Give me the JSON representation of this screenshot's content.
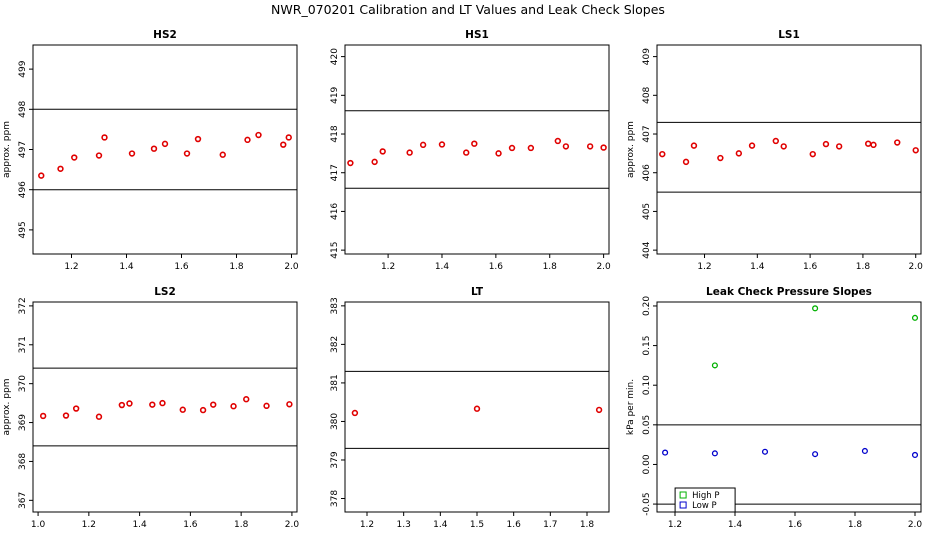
{
  "page_title": "NWR_070201  Calibration and LT Values and Leak Check Slopes",
  "colors": {
    "point": "#e00000",
    "high_p": "#00b000",
    "low_p": "#0000cc",
    "frame": "#000000"
  },
  "chart_data": [
    {
      "id": "hs2",
      "type": "scatter",
      "title": "HS2",
      "ylabel": "approx. ppm",
      "xlim": [
        1.06,
        2.02
      ],
      "ylim": [
        494.4,
        499.6
      ],
      "xticks": [
        1.2,
        1.4,
        1.6,
        1.8,
        2.0
      ],
      "xtick_labels": [
        "1.2",
        "1.4",
        "1.6",
        "1.8",
        "2.0"
      ],
      "yticks": [
        495,
        496,
        497,
        498,
        499
      ],
      "ytick_labels": [
        "495",
        "496",
        "497",
        "498",
        "499"
      ],
      "hlines": [
        498.0,
        496.0
      ],
      "points": [
        [
          1.09,
          496.35
        ],
        [
          1.16,
          496.52
        ],
        [
          1.21,
          496.8
        ],
        [
          1.3,
          496.85
        ],
        [
          1.32,
          497.3
        ],
        [
          1.42,
          496.9
        ],
        [
          1.5,
          497.02
        ],
        [
          1.54,
          497.14
        ],
        [
          1.62,
          496.9
        ],
        [
          1.66,
          497.26
        ],
        [
          1.75,
          496.87
        ],
        [
          1.84,
          497.24
        ],
        [
          1.88,
          497.36
        ],
        [
          1.97,
          497.12
        ],
        [
          1.99,
          497.3
        ]
      ]
    },
    {
      "id": "hs1",
      "type": "scatter",
      "title": "HS1",
      "ylabel": "",
      "xlim": [
        1.04,
        2.02
      ],
      "ylim": [
        414.9,
        420.3
      ],
      "xticks": [
        1.2,
        1.4,
        1.6,
        1.8,
        2.0
      ],
      "xtick_labels": [
        "1.2",
        "1.4",
        "1.6",
        "1.8",
        "2.0"
      ],
      "yticks": [
        415,
        416,
        417,
        418,
        419,
        420
      ],
      "ytick_labels": [
        "415",
        "416",
        "417",
        "418",
        "419",
        "420"
      ],
      "hlines": [
        418.6,
        416.6
      ],
      "points": [
        [
          1.06,
          417.25
        ],
        [
          1.15,
          417.28
        ],
        [
          1.18,
          417.55
        ],
        [
          1.28,
          417.52
        ],
        [
          1.33,
          417.72
        ],
        [
          1.4,
          417.73
        ],
        [
          1.49,
          417.52
        ],
        [
          1.52,
          417.75
        ],
        [
          1.61,
          417.5
        ],
        [
          1.66,
          417.64
        ],
        [
          1.73,
          417.64
        ],
        [
          1.83,
          417.82
        ],
        [
          1.86,
          417.68
        ],
        [
          1.95,
          417.68
        ],
        [
          2.0,
          417.65
        ]
      ]
    },
    {
      "id": "ls1",
      "type": "scatter",
      "title": "LS1",
      "ylabel": "approx. ppm",
      "xlim": [
        1.02,
        2.02
      ],
      "ylim": [
        403.9,
        409.3
      ],
      "xticks": [
        1.2,
        1.4,
        1.6,
        1.8,
        2.0
      ],
      "xtick_labels": [
        "1.2",
        "1.4",
        "1.6",
        "1.8",
        "2.0"
      ],
      "yticks": [
        404,
        405,
        406,
        407,
        408,
        409
      ],
      "ytick_labels": [
        "404",
        "405",
        "406",
        "407",
        "408",
        "409"
      ],
      "hlines": [
        407.3,
        405.5
      ],
      "points": [
        [
          1.04,
          406.48
        ],
        [
          1.13,
          406.28
        ],
        [
          1.16,
          406.7
        ],
        [
          1.26,
          406.38
        ],
        [
          1.33,
          406.5
        ],
        [
          1.38,
          406.7
        ],
        [
          1.47,
          406.82
        ],
        [
          1.5,
          406.68
        ],
        [
          1.61,
          406.48
        ],
        [
          1.66,
          406.74
        ],
        [
          1.71,
          406.68
        ],
        [
          1.82,
          406.75
        ],
        [
          1.84,
          406.72
        ],
        [
          1.93,
          406.78
        ],
        [
          2.0,
          406.58
        ]
      ]
    },
    {
      "id": "ls2",
      "type": "scatter",
      "title": "LS2",
      "ylabel": "approx. ppm",
      "xlim": [
        0.98,
        2.02
      ],
      "ylim": [
        366.7,
        372.1
      ],
      "xticks": [
        1.0,
        1.2,
        1.4,
        1.6,
        1.8,
        2.0
      ],
      "xtick_labels": [
        "1.0",
        "1.2",
        "1.4",
        "1.6",
        "1.8",
        "2.0"
      ],
      "yticks": [
        367,
        368,
        369,
        370,
        371,
        372
      ],
      "ytick_labels": [
        "367",
        "368",
        "369",
        "370",
        "371",
        "372"
      ],
      "hlines": [
        370.4,
        368.4
      ],
      "points": [
        [
          1.02,
          369.17
        ],
        [
          1.11,
          369.18
        ],
        [
          1.15,
          369.36
        ],
        [
          1.24,
          369.15
        ],
        [
          1.33,
          369.45
        ],
        [
          1.36,
          369.49
        ],
        [
          1.45,
          369.46
        ],
        [
          1.49,
          369.5
        ],
        [
          1.57,
          369.33
        ],
        [
          1.65,
          369.32
        ],
        [
          1.69,
          369.46
        ],
        [
          1.77,
          369.42
        ],
        [
          1.82,
          369.6
        ],
        [
          1.9,
          369.43
        ],
        [
          1.99,
          369.47
        ]
      ]
    },
    {
      "id": "lt",
      "type": "scatter",
      "title": "LT",
      "ylabel": "",
      "xlim": [
        1.14,
        1.86
      ],
      "ylim": [
        377.65,
        383.1
      ],
      "xticks": [
        1.2,
        1.3,
        1.4,
        1.5,
        1.6,
        1.7,
        1.8
      ],
      "xtick_labels": [
        "1.2",
        "1.3",
        "1.4",
        "1.5",
        "1.6",
        "1.7",
        "1.8"
      ],
      "yticks": [
        378,
        379,
        380,
        381,
        382,
        383
      ],
      "ytick_labels": [
        "378",
        "379",
        "380",
        "381",
        "382",
        "383"
      ],
      "hlines": [
        381.3,
        379.3
      ],
      "points": [
        [
          1.167,
          380.22
        ],
        [
          1.5,
          380.33
        ],
        [
          1.833,
          380.3
        ]
      ]
    },
    {
      "id": "leak",
      "type": "scatter",
      "title": "Leak Check Pressure Slopes",
      "ylabel": "kPa per min.",
      "xlim": [
        1.14,
        2.02
      ],
      "ylim": [
        -0.06,
        0.205
      ],
      "xticks": [
        1.2,
        1.4,
        1.6,
        1.8,
        2.0
      ],
      "xtick_labels": [
        "1.2",
        "1.4",
        "1.6",
        "1.8",
        "2.0"
      ],
      "yticks": [
        -0.05,
        0.0,
        0.05,
        0.1,
        0.15,
        0.2
      ],
      "ytick_labels": [
        "-0.05",
        "0.00",
        "0.05",
        "0.10",
        "0.15",
        "0.20"
      ],
      "hlines": [
        0.05,
        -0.05
      ],
      "series": [
        {
          "name": "High P",
          "color": "#00b000",
          "points": [
            [
              1.333,
              0.125
            ],
            [
              1.667,
              0.197
            ],
            [
              2.0,
              0.185
            ]
          ]
        },
        {
          "name": "Low P",
          "color": "#0000cc",
          "points": [
            [
              1.167,
              0.015
            ],
            [
              1.333,
              0.014
            ],
            [
              1.5,
              0.016
            ],
            [
              1.667,
              0.013
            ],
            [
              1.833,
              0.017
            ],
            [
              2.0,
              0.012
            ]
          ]
        }
      ],
      "legend": "bottom-left"
    }
  ]
}
